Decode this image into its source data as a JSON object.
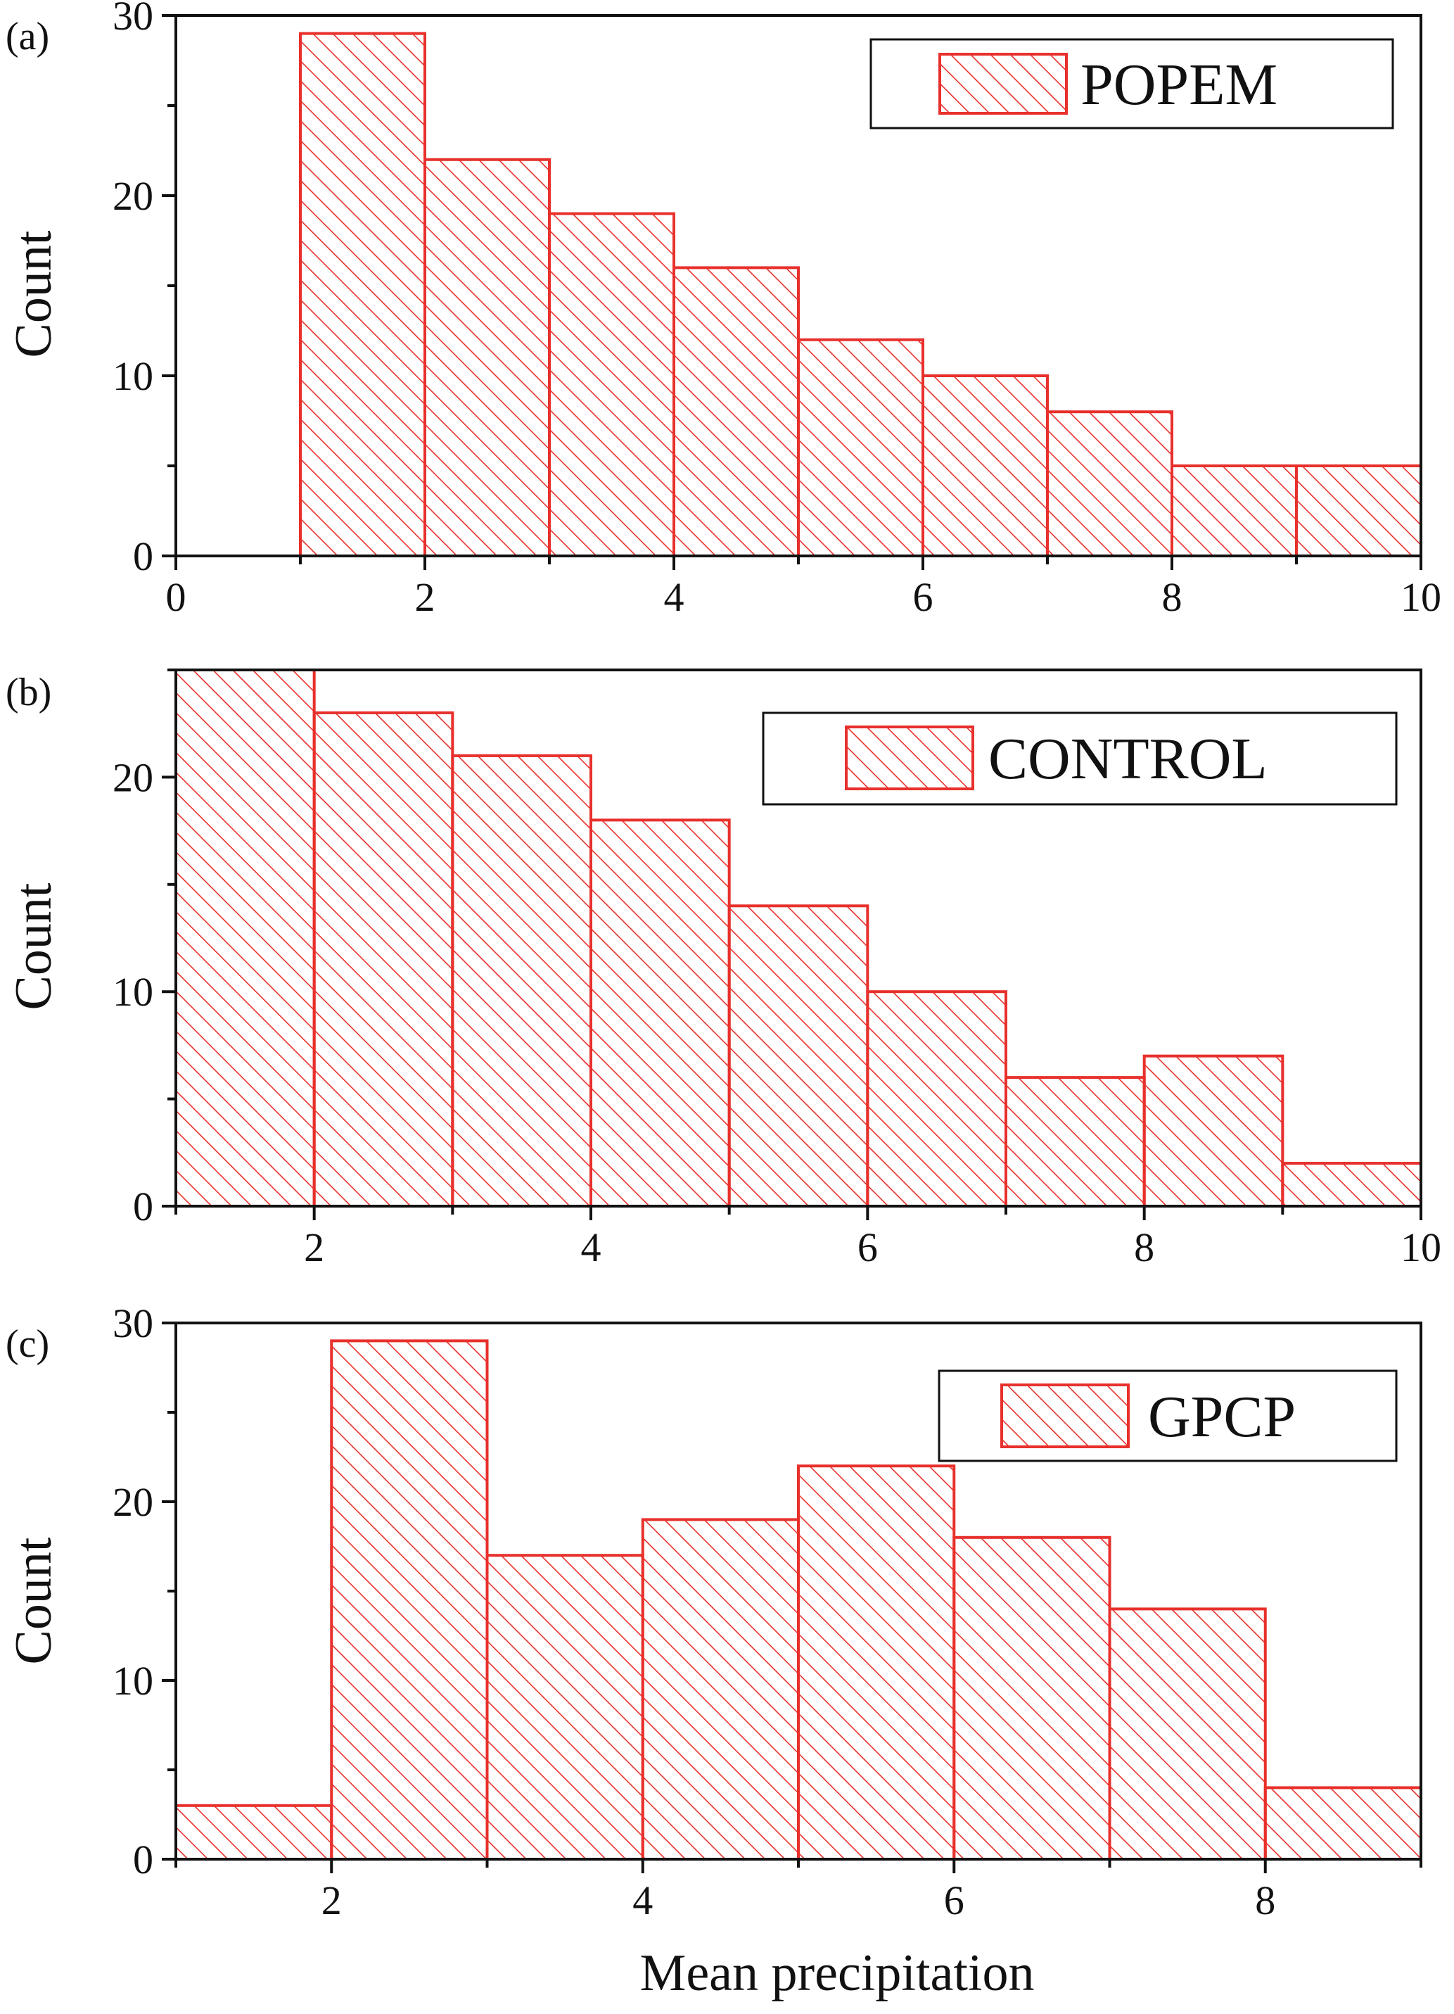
{
  "figure": {
    "xlabel": "Mean precipitation",
    "ylabel": "Count",
    "bar_color": "#e8302c",
    "axis_color": "#111111",
    "fill": "hatched"
  },
  "chart_data": [
    {
      "type": "bar",
      "panel_label": "(a)",
      "legend": "POPEM",
      "legend_position": "top-right",
      "xlim": [
        0,
        10
      ],
      "ylim": [
        0,
        30
      ],
      "xticks": [
        "0",
        "2",
        "4",
        "6",
        "8",
        "10"
      ],
      "yticks": [
        "0",
        "10",
        "20",
        "30"
      ],
      "bins": [
        [
          1,
          2
        ],
        [
          2,
          3
        ],
        [
          3,
          4
        ],
        [
          4,
          5
        ],
        [
          5,
          6
        ],
        [
          6,
          7
        ],
        [
          7,
          8
        ],
        [
          8,
          9
        ],
        [
          9,
          10
        ]
      ],
      "values": [
        29,
        22,
        19,
        16,
        12,
        10,
        8,
        5,
        5
      ],
      "xlabel": "",
      "ylabel": "Count"
    },
    {
      "type": "bar",
      "panel_label": "(b)",
      "legend": "CONTROL",
      "legend_position": "top-right",
      "xlim": [
        1,
        10
      ],
      "ylim": [
        0,
        25
      ],
      "xticks": [
        "2",
        "4",
        "6",
        "8",
        "10"
      ],
      "yticks": [
        "0",
        "10",
        "20"
      ],
      "bins": [
        [
          1,
          2
        ],
        [
          2,
          3
        ],
        [
          3,
          4
        ],
        [
          4,
          5
        ],
        [
          5,
          6
        ],
        [
          6,
          7
        ],
        [
          7,
          8
        ],
        [
          8,
          9
        ],
        [
          9,
          10
        ]
      ],
      "values": [
        25,
        23,
        21,
        18,
        14,
        10,
        6,
        7,
        2
      ],
      "xlabel": "",
      "ylabel": "Count"
    },
    {
      "type": "bar",
      "panel_label": "(c)",
      "legend": "GPCP",
      "legend_position": "top-right",
      "xlim": [
        1,
        9
      ],
      "ylim": [
        0,
        30
      ],
      "xticks": [
        "2",
        "4",
        "6",
        "8"
      ],
      "yticks": [
        "0",
        "10",
        "20",
        "30"
      ],
      "bins": [
        [
          1,
          2
        ],
        [
          2,
          3
        ],
        [
          3,
          4
        ],
        [
          4,
          5
        ],
        [
          5,
          6
        ],
        [
          6,
          7
        ],
        [
          7,
          8
        ],
        [
          8,
          9
        ]
      ],
      "values": [
        3,
        29,
        17,
        19,
        22,
        18,
        14,
        4
      ],
      "xlabel": "Mean precipitation",
      "ylabel": "Count"
    }
  ]
}
